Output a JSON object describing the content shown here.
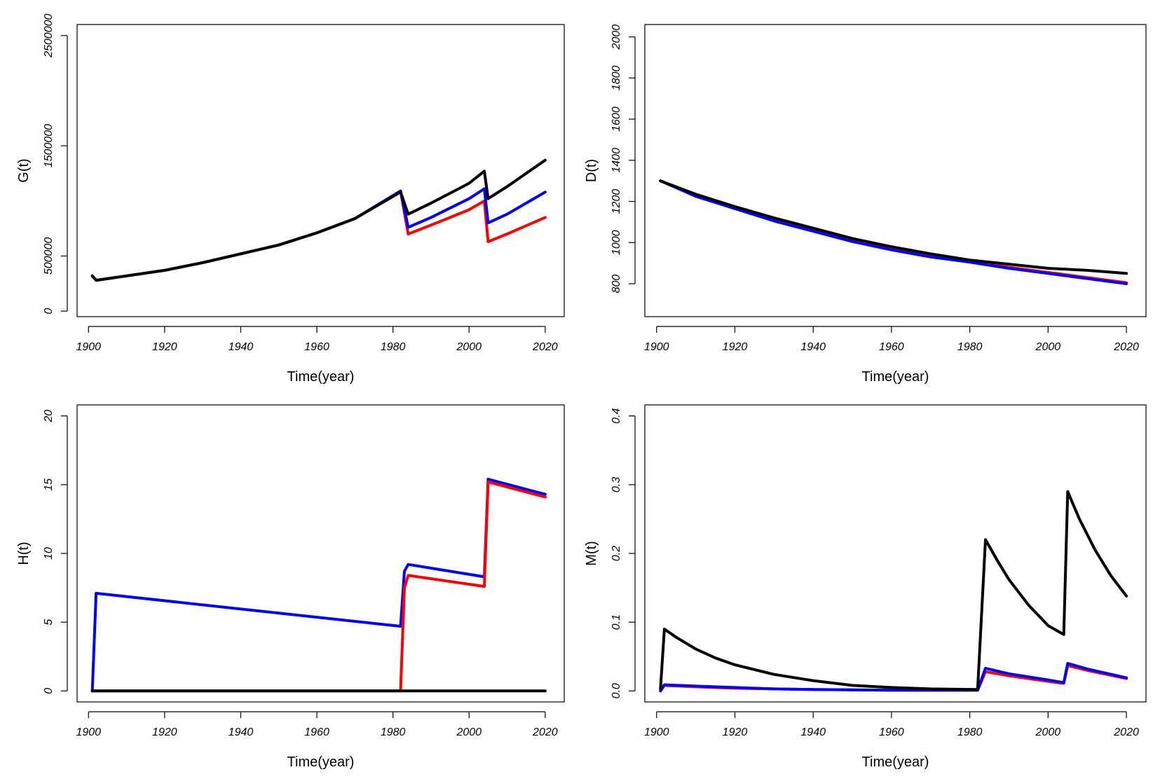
{
  "chart_data": [
    {
      "type": "line",
      "title": "",
      "xlabel": "Time(year)",
      "ylabel": "G(t)",
      "xlim": [
        1897,
        2025
      ],
      "ylim": [
        -50000,
        2600000
      ],
      "xticks": [
        1900,
        1920,
        1940,
        1960,
        1980,
        2000,
        2020
      ],
      "yticks": [
        0,
        500000,
        1500000,
        2500000
      ],
      "series": [
        {
          "color": "#ff0000",
          "x": [
            1901,
            1902,
            1910,
            1920,
            1930,
            1940,
            1950,
            1960,
            1970,
            1982,
            1984,
            1990,
            2000,
            2004,
            2005,
            2010,
            2020
          ],
          "y": [
            320000,
            280000,
            320000,
            370000,
            440000,
            520000,
            600000,
            710000,
            840000,
            1090000,
            700000,
            780000,
            920000,
            1000000,
            630000,
            700000,
            850000
          ]
        },
        {
          "color": "#0000ff",
          "x": [
            1901,
            1902,
            1910,
            1920,
            1930,
            1940,
            1950,
            1960,
            1970,
            1982,
            1984,
            1990,
            2000,
            2004,
            2005,
            2010,
            2020
          ],
          "y": [
            320000,
            280000,
            320000,
            370000,
            440000,
            520000,
            600000,
            710000,
            840000,
            1090000,
            760000,
            850000,
            1020000,
            1110000,
            800000,
            880000,
            1080000
          ]
        },
        {
          "color": "#000000",
          "x": [
            1901,
            1902,
            1910,
            1920,
            1930,
            1940,
            1950,
            1960,
            1970,
            1982,
            1984,
            1990,
            2000,
            2004,
            2005,
            2010,
            2020
          ],
          "y": [
            320000,
            280000,
            320000,
            370000,
            440000,
            520000,
            600000,
            710000,
            840000,
            1080000,
            880000,
            980000,
            1160000,
            1270000,
            1020000,
            1130000,
            1370000
          ]
        }
      ]
    },
    {
      "type": "line",
      "title": "",
      "xlabel": "Time(year)",
      "ylabel": "D(t)",
      "xlim": [
        1897,
        2025
      ],
      "ylim": [
        640,
        2060
      ],
      "xticks": [
        1900,
        1920,
        1940,
        1960,
        1980,
        2000,
        2020
      ],
      "yticks": [
        800,
        1000,
        1200,
        1400,
        1600,
        1800,
        2000
      ],
      "series": [
        {
          "color": "#ff0000",
          "x": [
            1901,
            1910,
            1920,
            1930,
            1940,
            1950,
            1960,
            1970,
            1980,
            1990,
            2000,
            2010,
            2020
          ],
          "y": [
            1300,
            1230,
            1170,
            1110,
            1060,
            1010,
            970,
            935,
            905,
            880,
            855,
            830,
            805
          ]
        },
        {
          "color": "#0000ff",
          "x": [
            1901,
            1910,
            1920,
            1930,
            1940,
            1950,
            1960,
            1970,
            1980,
            1990,
            2000,
            2010,
            2020
          ],
          "y": [
            1300,
            1225,
            1165,
            1105,
            1055,
            1005,
            965,
            930,
            905,
            875,
            850,
            825,
            800
          ]
        },
        {
          "color": "#000000",
          "x": [
            1901,
            1910,
            1920,
            1930,
            1940,
            1950,
            1960,
            1970,
            1980,
            1990,
            2000,
            2010,
            2020
          ],
          "y": [
            1300,
            1235,
            1175,
            1120,
            1070,
            1020,
            980,
            945,
            915,
            895,
            875,
            865,
            850
          ]
        }
      ]
    },
    {
      "type": "line",
      "title": "",
      "xlabel": "Time(year)",
      "ylabel": "H(t)",
      "xlim": [
        1897,
        2025
      ],
      "ylim": [
        -0.8,
        20.8
      ],
      "xticks": [
        1900,
        1920,
        1940,
        1960,
        1980,
        2000,
        2020
      ],
      "yticks": [
        0,
        5,
        10,
        15,
        20
      ],
      "series": [
        {
          "color": "#0000ff",
          "x": [
            1901,
            1902,
            1982,
            1983,
            1984,
            2004,
            2005,
            2020
          ],
          "y": [
            0,
            7.1,
            4.7,
            8.7,
            9.2,
            8.3,
            15.4,
            14.3
          ]
        },
        {
          "color": "#ff0000",
          "x": [
            1901,
            1982,
            1983,
            1984,
            2004,
            2005,
            2020
          ],
          "y": [
            0,
            0,
            7.5,
            8.4,
            7.6,
            15.2,
            14.1
          ]
        },
        {
          "color": "#000000",
          "x": [
            1901,
            2020
          ],
          "y": [
            0,
            0
          ]
        }
      ]
    },
    {
      "type": "line",
      "title": "",
      "xlabel": "Time(year)",
      "ylabel": "M(t)",
      "xlim": [
        1897,
        2025
      ],
      "ylim": [
        -0.016,
        0.416
      ],
      "xticks": [
        1900,
        1920,
        1940,
        1960,
        1980,
        2000,
        2020
      ],
      "yticks": [
        0.0,
        0.1,
        0.2,
        0.3,
        0.4
      ],
      "ytick_labels": [
        "0.0",
        "0.1",
        "0.2",
        "0.3",
        "0.4"
      ],
      "series": [
        {
          "color": "#ff0000",
          "x": [
            1901,
            1902,
            1910,
            1920,
            1930,
            1940,
            1960,
            1982,
            1984,
            1990,
            2000,
            2004,
            2005,
            2010,
            2020
          ],
          "y": [
            0,
            0.008,
            0.006,
            0.004,
            0.003,
            0.002,
            0.001,
            0.001,
            0.028,
            0.022,
            0.014,
            0.011,
            0.037,
            0.03,
            0.018
          ]
        },
        {
          "color": "#0000ff",
          "x": [
            1901,
            1902,
            1910,
            1920,
            1930,
            1940,
            1960,
            1982,
            1984,
            1990,
            2000,
            2004,
            2005,
            2010,
            2020
          ],
          "y": [
            0,
            0.009,
            0.007,
            0.005,
            0.003,
            0.002,
            0.001,
            0.001,
            0.033,
            0.025,
            0.016,
            0.012,
            0.04,
            0.032,
            0.019
          ]
        },
        {
          "color": "#000000",
          "x": [
            1901,
            1902,
            1905,
            1910,
            1915,
            1920,
            1930,
            1940,
            1950,
            1960,
            1970,
            1982,
            1984,
            1987,
            1990,
            1995,
            2000,
            2004,
            2005,
            2008,
            2012,
            2016,
            2020
          ],
          "y": [
            0.003,
            0.09,
            0.078,
            0.061,
            0.048,
            0.038,
            0.024,
            0.015,
            0.008,
            0.005,
            0.003,
            0.002,
            0.22,
            0.19,
            0.162,
            0.125,
            0.095,
            0.082,
            0.29,
            0.25,
            0.205,
            0.168,
            0.138
          ]
        }
      ]
    }
  ]
}
